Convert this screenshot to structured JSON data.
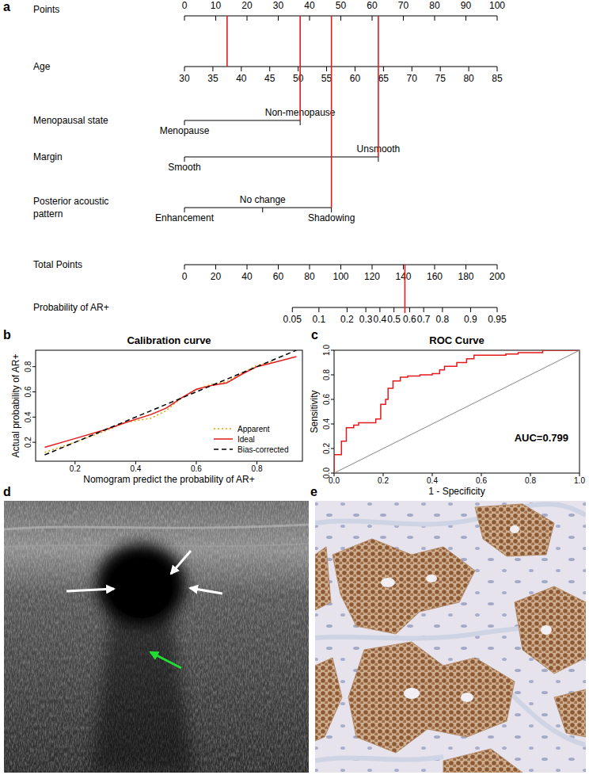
{
  "chart_data": [
    {
      "type": "nomogram",
      "panel": "a",
      "color": "#e41a1c",
      "rows": [
        {
          "label": "Points",
          "xlim": [
            0,
            100
          ],
          "xticks": [
            0,
            10,
            20,
            30,
            40,
            50,
            60,
            70,
            80,
            90,
            100
          ]
        },
        {
          "label": "Age",
          "xlim": [
            30,
            85
          ],
          "points": [
            0,
            100
          ],
          "xticks": [
            30,
            35,
            40,
            45,
            50,
            55,
            60,
            65,
            70,
            75,
            80,
            85
          ],
          "selected": 37.5
        },
        {
          "label": "Menopausal state",
          "levels": [
            {
              "label": "Menopause",
              "points": 0
            },
            {
              "label": "Non-menopause",
              "points": 37
            }
          ],
          "selected": "Non-menopause"
        },
        {
          "label": "Margin",
          "levels": [
            {
              "label": "Smooth",
              "points": 0
            },
            {
              "label": "Unsmooth",
              "points": 62
            }
          ],
          "selected": "Unsmooth"
        },
        {
          "label": "Posterior acoustic pattern",
          "levels": [
            {
              "label": "Enhancement",
              "points": 0
            },
            {
              "label": "No change",
              "points": 25
            },
            {
              "label": "Shadowing",
              "points": 47
            }
          ],
          "selected": "Shadowing"
        },
        {
          "label": "Total Points",
          "xlim": [
            0,
            200
          ],
          "xticks": [
            0,
            20,
            40,
            60,
            80,
            100,
            120,
            140,
            160,
            180,
            200
          ],
          "selected": 141
        },
        {
          "label": "Probability of AR+",
          "xticks": [
            {
              "value": 69,
              "label": "0.05"
            },
            {
              "value": 86,
              "label": "0.1"
            },
            {
              "value": 104,
              "label": "0.2"
            },
            {
              "value": 116,
              "label": "0.3"
            },
            {
              "value": 125,
              "label": "0.4"
            },
            {
              "value": 134,
              "label": "0.5"
            },
            {
              "value": 144,
              "label": "0.6"
            },
            {
              "value": 153,
              "label": "0.7"
            },
            {
              "value": 165,
              "label": "0.8"
            },
            {
              "value": 183,
              "label": "0.9"
            },
            {
              "value": 200,
              "label": "0.95"
            }
          ]
        }
      ]
    },
    {
      "type": "line",
      "panel": "b",
      "title": "Calibration curve",
      "x_label": "Nomogram predict the probability of AR+",
      "y_label": "Actual probability of AR+",
      "xlim": [
        0.07,
        0.95
      ],
      "xticks": [
        0.2,
        0.4,
        0.6,
        0.8
      ],
      "ylim": [
        0.05,
        0.93
      ],
      "yticks": [
        0.2,
        0.4,
        0.6,
        0.8
      ],
      "legend": "bottom-right",
      "x": [
        0.1,
        0.2,
        0.3,
        0.37,
        0.45,
        0.5,
        0.55,
        0.6,
        0.65,
        0.7,
        0.75,
        0.8,
        0.85,
        0.93
      ],
      "series": [
        {
          "name": "Apparent",
          "color": "#e69f00",
          "line_style": "dotted",
          "values": [
            0.12,
            0.2,
            0.29,
            0.36,
            0.39,
            0.45,
            0.55,
            0.62,
            0.66,
            0.68,
            0.75,
            0.81,
            0.84,
            null
          ]
        },
        {
          "name": "Ideal",
          "color": "#e41a1c",
          "line_style": "solid",
          "values": [
            0.16,
            0.23,
            0.3,
            0.36,
            0.42,
            0.47,
            0.55,
            0.62,
            0.65,
            0.67,
            0.74,
            0.8,
            0.83,
            0.88
          ]
        },
        {
          "name": "Bias-corrected",
          "color": "#000000",
          "line_style": "dashed",
          "values": [
            0.1,
            0.2,
            0.3,
            0.37,
            0.45,
            0.5,
            0.55,
            0.6,
            0.65,
            0.7,
            0.75,
            0.8,
            0.85,
            0.93
          ]
        }
      ]
    },
    {
      "type": "line",
      "panel": "c",
      "title": "ROC Curve",
      "x_label": "1 - Specificity",
      "y_label": "Sensitivity",
      "xlim": [
        0,
        1
      ],
      "xticks": [
        {
          "value": 0,
          "label": "0.0"
        },
        0.2,
        0.4,
        0.6,
        0.8,
        {
          "value": 1,
          "label": "1.0"
        }
      ],
      "ylim": [
        0,
        1
      ],
      "yticks": [
        {
          "value": 0,
          "label": "0.0"
        },
        0.2,
        0.4,
        0.6,
        0.8,
        {
          "value": 1,
          "label": "1.0"
        }
      ],
      "annotations": [
        "AUC=0.799"
      ],
      "series": [
        {
          "color": "#e41a1c",
          "line_style": "solid",
          "x": [
            0,
            0,
            0.03,
            0.03,
            0.05,
            0.05,
            0.08,
            0.08,
            0.1,
            0.1,
            0.17,
            0.17,
            0.19,
            0.19,
            0.21,
            0.21,
            0.22,
            0.22,
            0.24,
            0.24,
            0.27,
            0.27,
            0.3,
            0.3,
            0.35,
            0.35,
            0.4,
            0.4,
            0.43,
            0.43,
            0.45,
            0.45,
            0.5,
            0.5,
            0.54,
            0.54,
            0.57,
            0.57,
            0.7,
            0.7,
            0.75,
            0.75,
            0.85,
            0.85,
            1.0
          ],
          "values": [
            0,
            0.15,
            0.15,
            0.26,
            0.26,
            0.37,
            0.37,
            0.39,
            0.39,
            0.41,
            0.41,
            0.44,
            0.44,
            0.56,
            0.56,
            0.6,
            0.6,
            0.69,
            0.69,
            0.75,
            0.75,
            0.78,
            0.78,
            0.79,
            0.79,
            0.8,
            0.8,
            0.81,
            0.81,
            0.84,
            0.84,
            0.87,
            0.87,
            0.9,
            0.9,
            0.93,
            0.93,
            0.96,
            0.96,
            0.97,
            0.97,
            0.98,
            0.98,
            1.0,
            1.0
          ]
        },
        {
          "color": "#808080",
          "line_style": "solid",
          "x": [
            0,
            1
          ],
          "values": [
            0,
            1
          ]
        }
      ]
    }
  ],
  "images": [
    {
      "panel": "d"
    },
    {
      "panel": "e"
    }
  ]
}
